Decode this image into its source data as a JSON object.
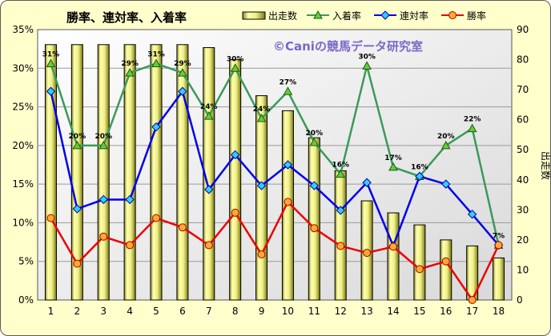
{
  "chart_data": {
    "type": "bar",
    "title": "勝率、連対率、入着率",
    "watermark": "©Caniの競馬データ研究室",
    "ylabel_right": "出走数",
    "categories": [
      "1",
      "2",
      "3",
      "4",
      "5",
      "6",
      "7",
      "8",
      "9",
      "10",
      "11",
      "12",
      "13",
      "14",
      "15",
      "16",
      "17",
      "18"
    ],
    "ylim_left": [
      0,
      35
    ],
    "ylim_right": [
      0,
      90
    ],
    "left_ticks": [
      "0%",
      "5%",
      "10%",
      "15%",
      "20%",
      "25%",
      "30%",
      "35%"
    ],
    "right_ticks": [
      "0",
      "10",
      "20",
      "30",
      "40",
      "50",
      "60",
      "70",
      "80",
      "90"
    ],
    "grid": true,
    "legend_position": "top",
    "bar_series": {
      "name": "出走数",
      "axis": "right",
      "color": "#e8e890",
      "values": [
        85,
        85,
        85,
        85,
        85,
        85,
        84,
        80,
        68,
        63,
        54,
        43,
        33,
        29,
        25,
        20,
        18,
        14
      ]
    },
    "series": [
      {
        "name": "入着率",
        "color": "#3a9a5a",
        "marker": "triangle",
        "values": [
          30.6,
          20.0,
          20.0,
          29.4,
          30.6,
          29.4,
          23.8,
          30.0,
          23.5,
          27.0,
          20.4,
          16.3,
          30.3,
          17.2,
          16.0,
          20.0,
          22.2,
          7.1
        ],
        "labels": [
          "31%",
          "20%",
          "20%",
          "29%",
          "31%",
          "29%",
          "24%",
          "30%",
          "24%",
          "27%",
          "20%",
          "16%",
          "30%",
          "17%",
          "16%",
          "20%",
          "22%",
          "7%"
        ]
      },
      {
        "name": "連対率",
        "color": "#0000ee",
        "marker": "diamond",
        "values": [
          27.0,
          11.8,
          13.0,
          13.0,
          22.4,
          27.0,
          14.3,
          18.8,
          14.8,
          17.5,
          14.8,
          11.6,
          15.2,
          7.0,
          16.0,
          15.0,
          11.1,
          7.1
        ]
      },
      {
        "name": "勝率",
        "color": "#ee0000",
        "marker": "circle",
        "values": [
          10.6,
          4.7,
          8.2,
          7.1,
          10.6,
          9.4,
          7.1,
          11.3,
          5.9,
          12.7,
          9.3,
          7.0,
          6.1,
          6.9,
          4.0,
          5.0,
          0.0,
          7.1
        ]
      }
    ]
  }
}
